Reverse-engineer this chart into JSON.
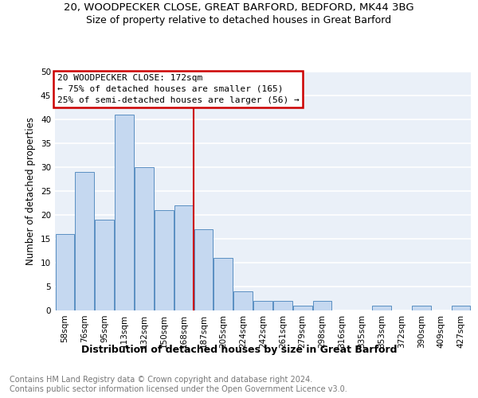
{
  "title1": "20, WOODPECKER CLOSE, GREAT BARFORD, BEDFORD, MK44 3BG",
  "title2": "Size of property relative to detached houses in Great Barford",
  "xlabel": "Distribution of detached houses by size in Great Barford",
  "ylabel": "Number of detached properties",
  "footer1": "Contains HM Land Registry data © Crown copyright and database right 2024.",
  "footer2": "Contains public sector information licensed under the Open Government Licence v3.0.",
  "categories": [
    "58sqm",
    "76sqm",
    "95sqm",
    "113sqm",
    "132sqm",
    "150sqm",
    "168sqm",
    "187sqm",
    "205sqm",
    "224sqm",
    "242sqm",
    "261sqm",
    "279sqm",
    "298sqm",
    "316sqm",
    "335sqm",
    "353sqm",
    "372sqm",
    "390sqm",
    "409sqm",
    "427sqm"
  ],
  "values": [
    16,
    29,
    19,
    41,
    30,
    21,
    22,
    17,
    11,
    4,
    2,
    2,
    1,
    2,
    0,
    0,
    1,
    0,
    1,
    0,
    1
  ],
  "bar_color": "#c5d8f0",
  "bar_edge_color": "#5a8fc2",
  "vline_x": 6.5,
  "vline_color": "#cc0000",
  "annotation_title": "20 WOODPECKER CLOSE: 172sqm",
  "annotation_line1": "← 75% of detached houses are smaller (165)",
  "annotation_line2": "25% of semi-detached houses are larger (56) →",
  "annotation_box_color": "#ffffff",
  "annotation_box_edge": "#cc0000",
  "ylim": [
    0,
    50
  ],
  "yticks": [
    0,
    5,
    10,
    15,
    20,
    25,
    30,
    35,
    40,
    45,
    50
  ],
  "bg_color": "#eaf0f8",
  "grid_color": "#ffffff",
  "title1_fontsize": 9.5,
  "title2_fontsize": 9,
  "xlabel_fontsize": 9,
  "ylabel_fontsize": 8.5,
  "tick_fontsize": 7.5,
  "footer_fontsize": 7,
  "annotation_fontsize": 8
}
